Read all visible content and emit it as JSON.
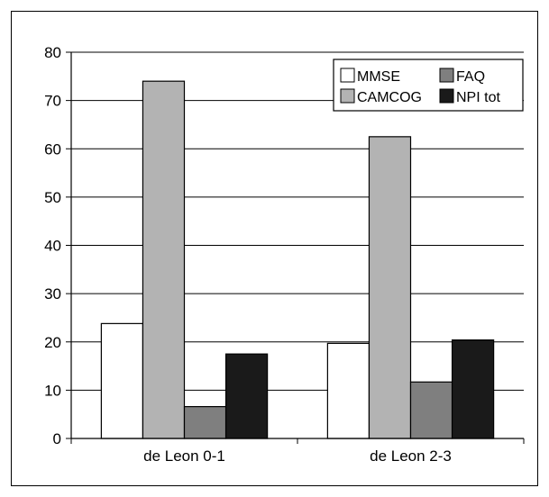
{
  "chart_data": {
    "type": "bar",
    "categories": [
      "de Leon 0-1",
      "de Leon 2-3"
    ],
    "series": [
      {
        "name": "MMSE",
        "color": "#ffffff",
        "values": [
          23.8,
          19.7
        ]
      },
      {
        "name": "CAMCOG",
        "color": "#b3b3b3",
        "values": [
          74.0,
          62.5
        ]
      },
      {
        "name": "FAQ",
        "color": "#7f7f7f",
        "values": [
          6.6,
          11.7
        ]
      },
      {
        "name": "NPI tot",
        "color": "#1a1a1a",
        "values": [
          17.5,
          20.4
        ]
      }
    ],
    "legend": {
      "placement": "top-right",
      "layout": [
        [
          "MMSE",
          "FAQ"
        ],
        [
          "CAMCOG",
          "NPI tot"
        ]
      ]
    },
    "yticks": [
      "0",
      "10",
      "20",
      "30",
      "40",
      "50",
      "60",
      "70",
      "80"
    ],
    "ylim": [
      0,
      80
    ],
    "grid": "horizontal",
    "title": "",
    "xlabel": "",
    "ylabel": ""
  }
}
